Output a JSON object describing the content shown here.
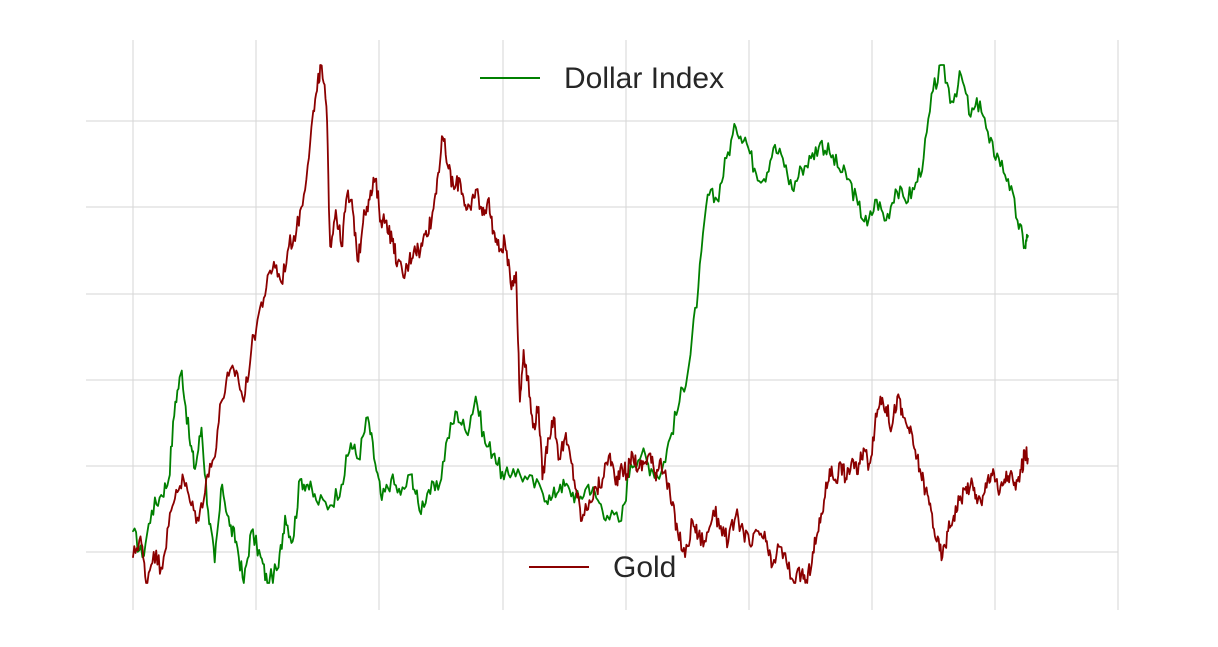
{
  "chart_data": {
    "type": "line",
    "title": "",
    "xlabel": "",
    "ylabel": "",
    "grid": true,
    "x_range": [
      0,
      1
    ],
    "series": [
      {
        "name": "Dollar Index",
        "color": "#008000",
        "legend_position": "top-center",
        "ylim": [
          0,
          1
        ],
        "points": [
          [
            0.0,
            0.1
          ],
          [
            0.01,
            0.05
          ],
          [
            0.02,
            0.14
          ],
          [
            0.03,
            0.17
          ],
          [
            0.038,
            0.2
          ],
          [
            0.045,
            0.35
          ],
          [
            0.052,
            0.41
          ],
          [
            0.06,
            0.28
          ],
          [
            0.066,
            0.22
          ],
          [
            0.073,
            0.3
          ],
          [
            0.08,
            0.14
          ],
          [
            0.087,
            0.04
          ],
          [
            0.095,
            0.19
          ],
          [
            0.103,
            0.11
          ],
          [
            0.11,
            0.08
          ],
          [
            0.118,
            0.0
          ],
          [
            0.126,
            0.1
          ],
          [
            0.136,
            0.05
          ],
          [
            0.143,
            0.0
          ],
          [
            0.155,
            0.03
          ],
          [
            0.162,
            0.13
          ],
          [
            0.17,
            0.08
          ],
          [
            0.178,
            0.2
          ],
          [
            0.186,
            0.19
          ],
          [
            0.195,
            0.16
          ],
          [
            0.21,
            0.15
          ],
          [
            0.222,
            0.19
          ],
          [
            0.232,
            0.27
          ],
          [
            0.24,
            0.24
          ],
          [
            0.25,
            0.32
          ],
          [
            0.258,
            0.23
          ],
          [
            0.265,
            0.16
          ],
          [
            0.275,
            0.2
          ],
          [
            0.285,
            0.17
          ],
          [
            0.297,
            0.21
          ],
          [
            0.305,
            0.14
          ],
          [
            0.315,
            0.18
          ],
          [
            0.325,
            0.18
          ],
          [
            0.335,
            0.28
          ],
          [
            0.345,
            0.33
          ],
          [
            0.355,
            0.29
          ],
          [
            0.365,
            0.36
          ],
          [
            0.375,
            0.27
          ],
          [
            0.385,
            0.25
          ],
          [
            0.395,
            0.2
          ],
          [
            0.405,
            0.22
          ],
          [
            0.42,
            0.2
          ],
          [
            0.435,
            0.18
          ],
          [
            0.445,
            0.16
          ],
          [
            0.455,
            0.19
          ],
          [
            0.465,
            0.18
          ],
          [
            0.475,
            0.16
          ],
          [
            0.485,
            0.19
          ],
          [
            0.495,
            0.16
          ],
          [
            0.505,
            0.13
          ],
          [
            0.52,
            0.12
          ],
          [
            0.53,
            0.23
          ],
          [
            0.542,
            0.25
          ],
          [
            0.552,
            0.22
          ],
          [
            0.562,
            0.21
          ],
          [
            0.572,
            0.28
          ],
          [
            0.582,
            0.35
          ],
          [
            0.592,
            0.42
          ],
          [
            0.602,
            0.57
          ],
          [
            0.612,
            0.75
          ],
          [
            0.622,
            0.74
          ],
          [
            0.632,
            0.82
          ],
          [
            0.642,
            0.88
          ],
          [
            0.652,
            0.86
          ],
          [
            0.662,
            0.8
          ],
          [
            0.672,
            0.78
          ],
          [
            0.682,
            0.84
          ],
          [
            0.692,
            0.82
          ],
          [
            0.702,
            0.76
          ],
          [
            0.712,
            0.8
          ],
          [
            0.722,
            0.82
          ],
          [
            0.732,
            0.85
          ],
          [
            0.742,
            0.83
          ],
          [
            0.752,
            0.8
          ],
          [
            0.762,
            0.78
          ],
          [
            0.772,
            0.73
          ],
          [
            0.782,
            0.69
          ],
          [
            0.792,
            0.74
          ],
          [
            0.802,
            0.7
          ],
          [
            0.812,
            0.76
          ],
          [
            0.822,
            0.74
          ],
          [
            0.832,
            0.76
          ],
          [
            0.842,
            0.82
          ],
          [
            0.852,
            0.95
          ],
          [
            0.862,
            1.0
          ],
          [
            0.872,
            0.93
          ],
          [
            0.882,
            0.98
          ],
          [
            0.892,
            0.9
          ],
          [
            0.902,
            0.93
          ],
          [
            0.912,
            0.85
          ],
          [
            0.922,
            0.82
          ],
          [
            0.932,
            0.78
          ],
          [
            0.942,
            0.7
          ],
          [
            0.95,
            0.65
          ],
          [
            0.953,
            0.67
          ]
        ]
      },
      {
        "name": "Gold",
        "color": "#8b0000",
        "legend_position": "bottom-center",
        "ylim": [
          0,
          1
        ],
        "points": [
          [
            0.0,
            0.05
          ],
          [
            0.008,
            0.09
          ],
          [
            0.014,
            0.0
          ],
          [
            0.022,
            0.06
          ],
          [
            0.03,
            0.03
          ],
          [
            0.038,
            0.11
          ],
          [
            0.046,
            0.18
          ],
          [
            0.054,
            0.2
          ],
          [
            0.062,
            0.15
          ],
          [
            0.07,
            0.12
          ],
          [
            0.078,
            0.2
          ],
          [
            0.086,
            0.24
          ],
          [
            0.094,
            0.35
          ],
          [
            0.102,
            0.4
          ],
          [
            0.11,
            0.41
          ],
          [
            0.118,
            0.35
          ],
          [
            0.126,
            0.45
          ],
          [
            0.134,
            0.52
          ],
          [
            0.142,
            0.57
          ],
          [
            0.15,
            0.62
          ],
          [
            0.158,
            0.58
          ],
          [
            0.166,
            0.65
          ],
          [
            0.174,
            0.68
          ],
          [
            0.182,
            0.75
          ],
          [
            0.19,
            0.88
          ],
          [
            0.196,
            0.95
          ],
          [
            0.2,
            1.0
          ],
          [
            0.206,
            0.92
          ],
          [
            0.21,
            0.65
          ],
          [
            0.216,
            0.72
          ],
          [
            0.222,
            0.65
          ],
          [
            0.228,
            0.75
          ],
          [
            0.234,
            0.72
          ],
          [
            0.24,
            0.62
          ],
          [
            0.246,
            0.72
          ],
          [
            0.252,
            0.74
          ],
          [
            0.258,
            0.78
          ],
          [
            0.264,
            0.7
          ],
          [
            0.27,
            0.7
          ],
          [
            0.276,
            0.66
          ],
          [
            0.282,
            0.62
          ],
          [
            0.288,
            0.59
          ],
          [
            0.294,
            0.62
          ],
          [
            0.3,
            0.65
          ],
          [
            0.306,
            0.64
          ],
          [
            0.312,
            0.68
          ],
          [
            0.318,
            0.7
          ],
          [
            0.324,
            0.78
          ],
          [
            0.33,
            0.86
          ],
          [
            0.336,
            0.8
          ],
          [
            0.342,
            0.76
          ],
          [
            0.348,
            0.78
          ],
          [
            0.354,
            0.73
          ],
          [
            0.36,
            0.72
          ],
          [
            0.366,
            0.76
          ],
          [
            0.372,
            0.71
          ],
          [
            0.378,
            0.74
          ],
          [
            0.384,
            0.68
          ],
          [
            0.39,
            0.64
          ],
          [
            0.396,
            0.66
          ],
          [
            0.402,
            0.58
          ],
          [
            0.408,
            0.6
          ],
          [
            0.412,
            0.35
          ],
          [
            0.416,
            0.45
          ],
          [
            0.42,
            0.4
          ],
          [
            0.426,
            0.3
          ],
          [
            0.432,
            0.34
          ],
          [
            0.436,
            0.2
          ],
          [
            0.442,
            0.28
          ],
          [
            0.448,
            0.32
          ],
          [
            0.454,
            0.24
          ],
          [
            0.46,
            0.28
          ],
          [
            0.466,
            0.24
          ],
          [
            0.472,
            0.18
          ],
          [
            0.478,
            0.12
          ],
          [
            0.486,
            0.16
          ],
          [
            0.494,
            0.18
          ],
          [
            0.5,
            0.2
          ],
          [
            0.508,
            0.25
          ],
          [
            0.514,
            0.19
          ],
          [
            0.52,
            0.23
          ],
          [
            0.526,
            0.21
          ],
          [
            0.532,
            0.25
          ],
          [
            0.538,
            0.22
          ],
          [
            0.544,
            0.23
          ],
          [
            0.55,
            0.25
          ],
          [
            0.556,
            0.21
          ],
          [
            0.562,
            0.24
          ],
          [
            0.568,
            0.2
          ],
          [
            0.574,
            0.15
          ],
          [
            0.58,
            0.1
          ],
          [
            0.588,
            0.05
          ],
          [
            0.596,
            0.12
          ],
          [
            0.602,
            0.09
          ],
          [
            0.61,
            0.08
          ],
          [
            0.618,
            0.14
          ],
          [
            0.626,
            0.11
          ],
          [
            0.634,
            0.08
          ],
          [
            0.642,
            0.13
          ],
          [
            0.65,
            0.1
          ],
          [
            0.658,
            0.07
          ],
          [
            0.666,
            0.1
          ],
          [
            0.674,
            0.08
          ],
          [
            0.68,
            0.03
          ],
          [
            0.688,
            0.07
          ],
          [
            0.696,
            0.04
          ],
          [
            0.704,
            0.0
          ],
          [
            0.712,
            0.02
          ],
          [
            0.718,
            0.0
          ],
          [
            0.724,
            0.06
          ],
          [
            0.73,
            0.1
          ],
          [
            0.736,
            0.16
          ],
          [
            0.742,
            0.22
          ],
          [
            0.748,
            0.2
          ],
          [
            0.754,
            0.23
          ],
          [
            0.76,
            0.2
          ],
          [
            0.766,
            0.24
          ],
          [
            0.772,
            0.21
          ],
          [
            0.778,
            0.26
          ],
          [
            0.784,
            0.23
          ],
          [
            0.79,
            0.3
          ],
          [
            0.796,
            0.36
          ],
          [
            0.802,
            0.34
          ],
          [
            0.808,
            0.3
          ],
          [
            0.814,
            0.36
          ],
          [
            0.82,
            0.32
          ],
          [
            0.826,
            0.3
          ],
          [
            0.832,
            0.26
          ],
          [
            0.838,
            0.22
          ],
          [
            0.844,
            0.18
          ],
          [
            0.85,
            0.14
          ],
          [
            0.856,
            0.08
          ],
          [
            0.862,
            0.05
          ],
          [
            0.868,
            0.1
          ],
          [
            0.874,
            0.13
          ],
          [
            0.88,
            0.16
          ],
          [
            0.886,
            0.18
          ],
          [
            0.892,
            0.19
          ],
          [
            0.898,
            0.17
          ],
          [
            0.904,
            0.15
          ],
          [
            0.91,
            0.2
          ],
          [
            0.916,
            0.22
          ],
          [
            0.922,
            0.17
          ],
          [
            0.928,
            0.2
          ],
          [
            0.934,
            0.21
          ],
          [
            0.94,
            0.18
          ],
          [
            0.946,
            0.22
          ],
          [
            0.95,
            0.25
          ],
          [
            0.953,
            0.24
          ]
        ]
      }
    ]
  }
}
